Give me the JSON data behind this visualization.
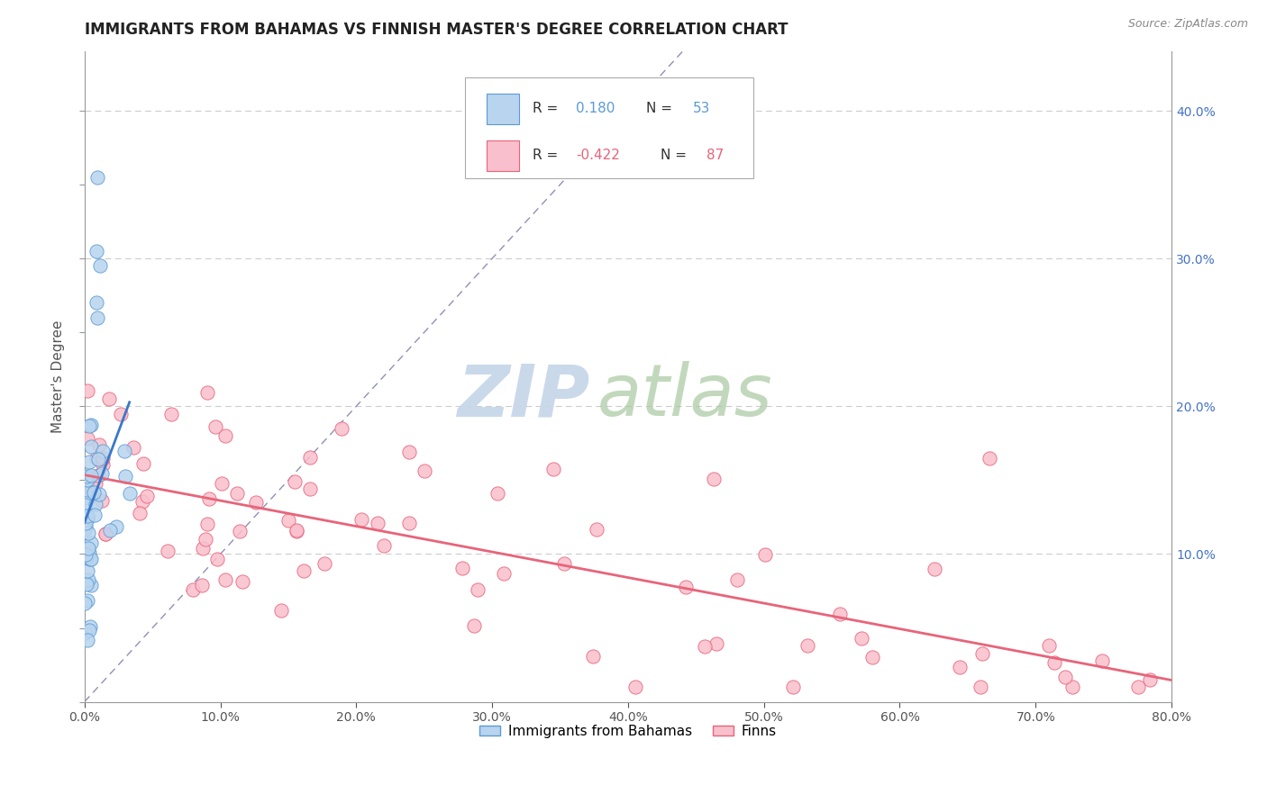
{
  "title": "IMMIGRANTS FROM BAHAMAS VS FINNISH MASTER'S DEGREE CORRELATION CHART",
  "source": "Source: ZipAtlas.com",
  "ylabel": "Master's Degree",
  "xlim": [
    0.0,
    0.8
  ],
  "ylim": [
    0.0,
    0.44
  ],
  "xtick_vals": [
    0.0,
    0.1,
    0.2,
    0.3,
    0.4,
    0.5,
    0.6,
    0.7,
    0.8
  ],
  "ytick_vals": [
    0.0,
    0.05,
    0.1,
    0.15,
    0.2,
    0.25,
    0.3,
    0.35,
    0.4
  ],
  "right_ytick_labels": [
    "",
    "",
    "10.0%",
    "",
    "20.0%",
    "",
    "30.0%",
    "",
    "40.0%"
  ],
  "r_bahamas": 0.18,
  "n_bahamas": 53,
  "r_finns": -0.422,
  "n_finns": 87,
  "color_bahamas_fill": "#b8d4ee",
  "color_bahamas_edge": "#5b9bd5",
  "color_finns_fill": "#f9bfcc",
  "color_finns_edge": "#e8647a",
  "color_bahamas_line": "#3a78c9",
  "color_finns_line": "#e8647a",
  "diagonal_color": "#9090b8",
  "background_color": "#ffffff",
  "grid_color": "#cccccc",
  "watermark_zip_color": "#c5d5e8",
  "watermark_atlas_color": "#a8c8a0",
  "title_fontsize": 12,
  "axis_label_fontsize": 11,
  "tick_fontsize": 10,
  "legend_fontsize": 11
}
